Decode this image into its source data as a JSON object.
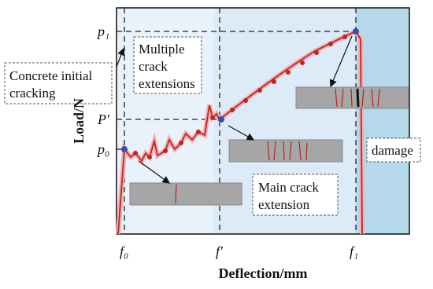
{
  "axes": {
    "y_label": "Load/N",
    "x_label": "Deflection/mm",
    "y_ticks": [
      "p₁",
      "P'",
      "p₀"
    ],
    "x_ticks": [
      "f₀",
      "f'",
      "f₁"
    ]
  },
  "annotations": {
    "initial_cracking": [
      "Concrete initial",
      "cracking"
    ],
    "multiple_cracks": [
      "Multiple",
      "crack",
      "extensions"
    ],
    "main_crack": [
      "Main crack",
      "extension"
    ],
    "damage": "damage"
  }
}
